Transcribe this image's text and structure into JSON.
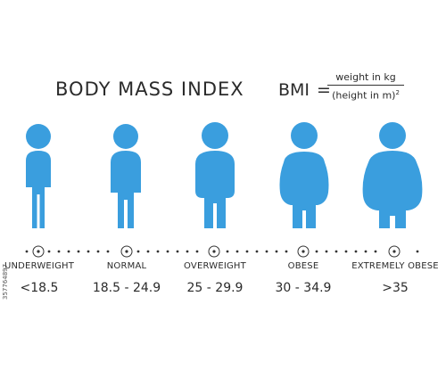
{
  "header": {
    "title": "BODY MASS INDEX",
    "formula_label": "BMI",
    "formula_equals": "=",
    "numerator": "weight in kg",
    "denominator": "(height in m)",
    "exponent": "2"
  },
  "colors": {
    "figure": "#3a9ede",
    "text": "#2b2b2b",
    "dots": "#333333"
  },
  "categories": [
    {
      "name": "UNDERWEIGHT",
      "range": "<18.5"
    },
    {
      "name": "NORMAL",
      "range": "18.5 - 24.9"
    },
    {
      "name": "OVERWEIGHT",
      "range": "25 - 29.9"
    },
    {
      "name": "OBESE",
      "range": "30 - 34.9"
    },
    {
      "name": "EXTREMELY OBESE",
      "range": ">35"
    }
  ],
  "watermark_id": "357764897"
}
